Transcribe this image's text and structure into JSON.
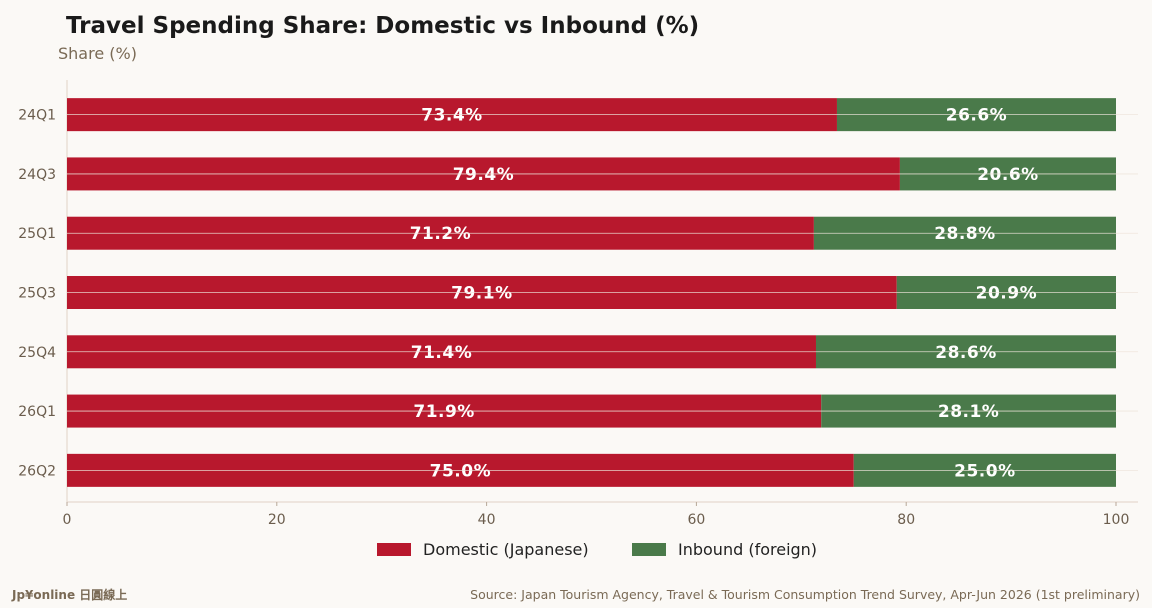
{
  "chart_data": {
    "type": "bar",
    "orientation": "horizontal",
    "stacked": true,
    "title": "Travel Spending Share: Domestic vs Inbound (%)",
    "unit_label": "Share (%)",
    "categories": [
      "24Q1",
      "24Q3",
      "25Q1",
      "25Q3",
      "25Q4",
      "26Q1",
      "26Q2"
    ],
    "series": [
      {
        "name": "Domestic (Japanese)",
        "color": "#b8182d",
        "values": [
          73.4,
          79.4,
          71.2,
          79.1,
          71.4,
          71.9,
          75.0
        ],
        "labels": [
          "73.4%",
          "79.4%",
          "71.2%",
          "79.1%",
          "71.4%",
          "71.9%",
          "75.0%"
        ]
      },
      {
        "name": "Inbound (foreign)",
        "color": "#4a7a4a",
        "values": [
          26.6,
          20.6,
          28.8,
          20.9,
          28.6,
          28.1,
          25.0
        ],
        "labels": [
          "26.6%",
          "20.6%",
          "28.8%",
          "20.9%",
          "28.6%",
          "28.1%",
          "25.0%"
        ]
      }
    ],
    "xlim": [
      0,
      100
    ],
    "x_ticks": [
      "0",
      "20",
      "40",
      "60",
      "80",
      "100"
    ],
    "legend_position": "bottom",
    "grid": true
  },
  "footer": {
    "brand": "Jp¥online 日圓線上",
    "source": "Source: Japan Tourism Agency, Travel & Tourism Consumption Trend Survey, Apr-Jun 2026 (1st preliminary)"
  }
}
